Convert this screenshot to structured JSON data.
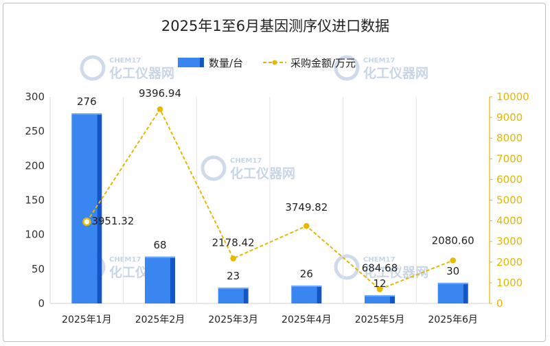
{
  "watermark": {
    "brand": "CHEM17",
    "name": "化工仪器网"
  },
  "colors": {
    "bar_front": "#3a86f0",
    "bar_side": "#1456c8",
    "bar_top": "#6aa7ff",
    "line": "#e6b800",
    "grid": "#e3e3e3",
    "right_axis": "#e6b800"
  },
  "chart_data": {
    "type": "bar",
    "title": "2025年1至6月基因测序仪进口数据",
    "categories": [
      "2025年1月",
      "2025年2月",
      "2025年3月",
      "2025年4月",
      "2025年5月",
      "2025年6月"
    ],
    "series": [
      {
        "name": "数量/台",
        "type": "bar",
        "axis": "left",
        "values": [
          276,
          68,
          23,
          26,
          12,
          30
        ],
        "labels": [
          "276",
          "68",
          "23",
          "26",
          "12",
          "30"
        ]
      },
      {
        "name": "采购金额/万元",
        "type": "line",
        "style": "dashed",
        "axis": "right",
        "values": [
          3951.32,
          9396.94,
          2178.42,
          3749.82,
          684.68,
          2080.6
        ],
        "labels": [
          "3951.32",
          "9396.94",
          "2178.42",
          "3749.82",
          "684.68",
          "2080.60"
        ]
      }
    ],
    "ylim_left": [
      0,
      300
    ],
    "yticks_left": [
      "0",
      "50",
      "100",
      "150",
      "200",
      "250",
      "300"
    ],
    "ylim_right": [
      0,
      10000
    ],
    "yticks_right": [
      "0",
      "1000",
      "2000",
      "3000",
      "4000",
      "5000",
      "6000",
      "7000",
      "8000",
      "9000",
      "10000"
    ],
    "legend_position": "top-center",
    "grid": "vertical"
  }
}
